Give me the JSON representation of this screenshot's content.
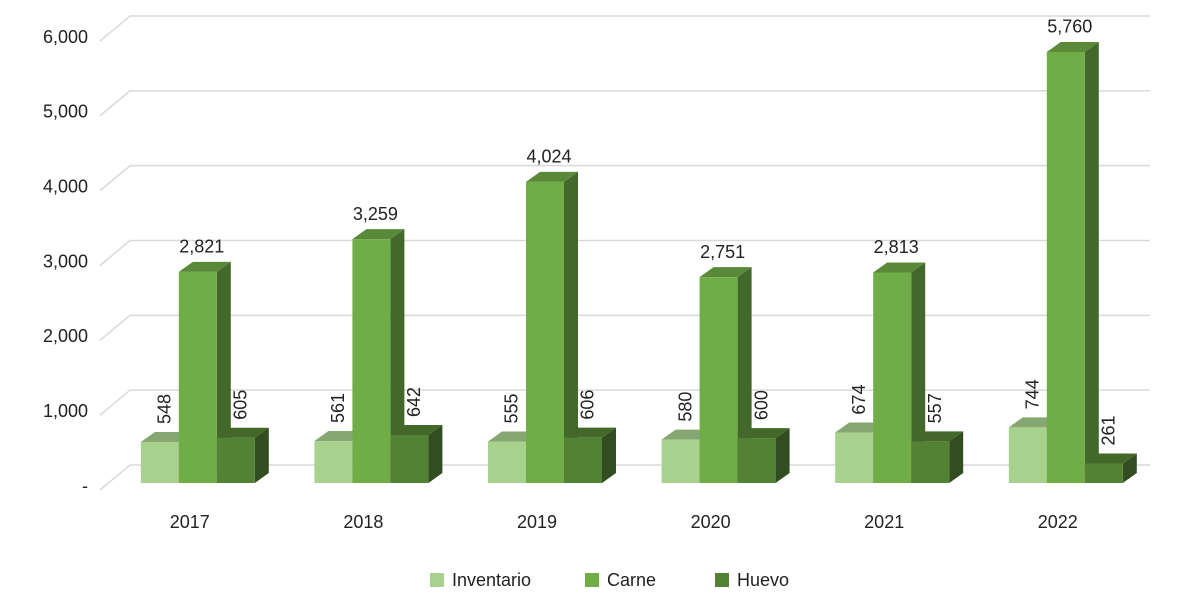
{
  "chart_data": {
    "type": "bar3d",
    "categories": [
      "2017",
      "2018",
      "2019",
      "2020",
      "2021",
      "2022"
    ],
    "series": [
      {
        "name": "Inventario",
        "color": "#a9d18e",
        "values": [
          548,
          561,
          555,
          580,
          674,
          744
        ],
        "value_labels": [
          "548",
          "561",
          "555",
          "580",
          "674",
          "744"
        ]
      },
      {
        "name": "Carne",
        "color": "#70ad47",
        "values": [
          2821,
          3259,
          4024,
          2751,
          2813,
          5760
        ],
        "value_labels": [
          "2,821",
          "3,259",
          "4,024",
          "2,751",
          "2,813",
          "5,760"
        ]
      },
      {
        "name": "Huevo",
        "color": "#548235",
        "values": [
          605,
          642,
          606,
          600,
          557,
          261
        ],
        "value_labels": [
          "605",
          "642",
          "606",
          "600",
          "557",
          "261"
        ]
      }
    ],
    "ylim": [
      0,
      6000
    ],
    "yticks": [
      {
        "value": 0,
        "label": "-"
      },
      {
        "value": 1000,
        "label": "1,000"
      },
      {
        "value": 2000,
        "label": "2,000"
      },
      {
        "value": 3000,
        "label": "3,000"
      },
      {
        "value": 4000,
        "label": "4,000"
      },
      {
        "value": 5000,
        "label": "5,000"
      },
      {
        "value": 6000,
        "label": "6,000"
      }
    ],
    "grid": true,
    "legend": "bottom"
  }
}
